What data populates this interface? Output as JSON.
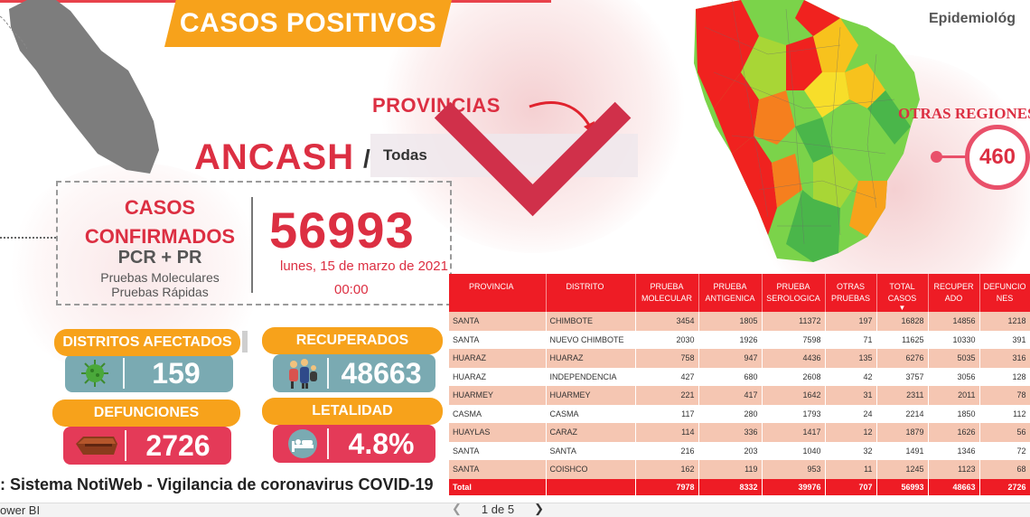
{
  "header": {
    "title": "CASOS POSITIVOS",
    "corner_label": "Epidemiológ"
  },
  "filter": {
    "label": "PROVINCIAS",
    "region": "ANCASH",
    "separator": "/",
    "selected": "Todas"
  },
  "confirmed": {
    "title": "CASOS CONFIRMADOS",
    "subtitle": "PCR + PR",
    "detail_line1": "Pruebas Moleculares",
    "detail_line2": "Pruebas Rápidas",
    "value": "56993",
    "date": "lunes, 15 de marzo de 2021",
    "time": "00:00"
  },
  "kpis": {
    "distritos": {
      "label": "DISTRITOS AFECTADOS",
      "value": "159",
      "icon": "virus-icon",
      "color": "#7aaab2"
    },
    "recuperados": {
      "label": "RECUPERADOS",
      "value": "48663",
      "icon": "family-icon",
      "color": "#7aaab2"
    },
    "defunciones": {
      "label": "DEFUNCIONES",
      "value": "2726",
      "icon": "coffin-icon",
      "color": "#e43a58"
    },
    "letalidad": {
      "label": "LETALIDAD",
      "value": "4.8%",
      "icon": "hospital-bed-icon",
      "color": "#e43a58"
    }
  },
  "otras_regiones": {
    "label": "OTRAS REGIONES",
    "value": "460"
  },
  "source": ": Sistema NotiWeb - Vigilancia de coronavirus COVID-19",
  "table": {
    "headers": [
      "PROVINCIA",
      "DISTRITO",
      "PRUEBA MOLECULAR",
      "PRUEBA ANTIGENICA",
      "PRUEBA SEROLOGICA",
      "OTRAS PRUEBAS",
      "TOTAL CASOS",
      "RECUPER ADO",
      "DEFUNCIO NES"
    ],
    "rows": [
      [
        "SANTA",
        "CHIMBOTE",
        "3454",
        "1805",
        "11372",
        "197",
        "16828",
        "14856",
        "1218"
      ],
      [
        "SANTA",
        "NUEVO CHIMBOTE",
        "2030",
        "1926",
        "7598",
        "71",
        "11625",
        "10330",
        "391"
      ],
      [
        "HUARAZ",
        "HUARAZ",
        "758",
        "947",
        "4436",
        "135",
        "6276",
        "5035",
        "316"
      ],
      [
        "HUARAZ",
        "INDEPENDENCIA",
        "427",
        "680",
        "2608",
        "42",
        "3757",
        "3056",
        "128"
      ],
      [
        "HUARMEY",
        "HUARMEY",
        "221",
        "417",
        "1642",
        "31",
        "2311",
        "2011",
        "78"
      ],
      [
        "CASMA",
        "CASMA",
        "117",
        "280",
        "1793",
        "24",
        "2214",
        "1850",
        "112"
      ],
      [
        "HUAYLAS",
        "CARAZ",
        "114",
        "336",
        "1417",
        "12",
        "1879",
        "1626",
        "56"
      ],
      [
        "SANTA",
        "SANTA",
        "216",
        "203",
        "1040",
        "32",
        "1491",
        "1346",
        "72"
      ],
      [
        "SANTA",
        "COISHCO",
        "162",
        "119",
        "953",
        "11",
        "1245",
        "1123",
        "68"
      ]
    ],
    "total": [
      "Total",
      "",
      "7978",
      "8332",
      "39976",
      "707",
      "56993",
      "48663",
      "2726"
    ]
  },
  "footer": {
    "brand": "ower BI",
    "page": "1 de 5"
  }
}
